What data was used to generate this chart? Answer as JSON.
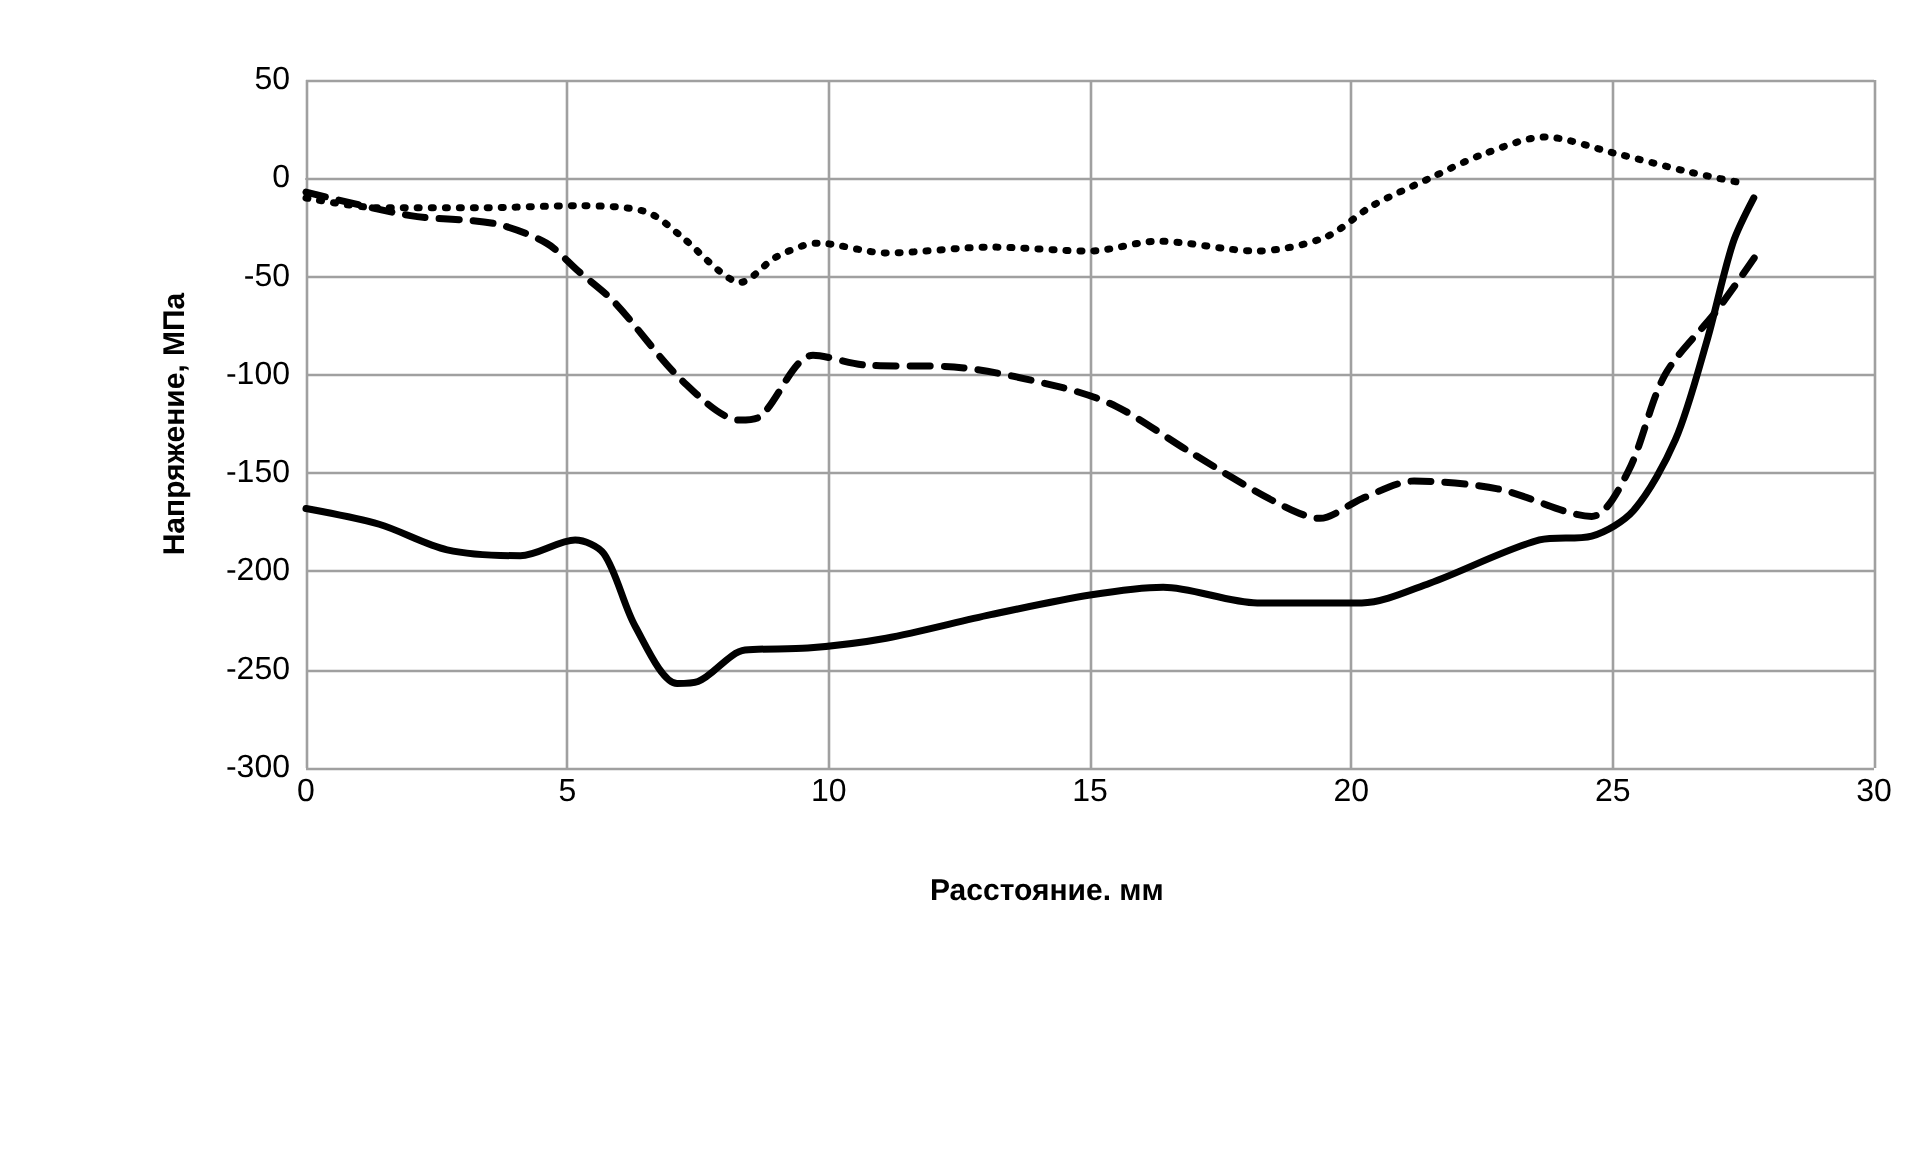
{
  "chart_data": {
    "type": "line",
    "xlabel": "Расстояние. мм",
    "ylabel": "Напряжение, МПа",
    "xlim": [
      0,
      30
    ],
    "xticks": [
      0,
      5,
      10,
      15,
      20,
      25,
      30
    ],
    "ylim": [
      -300,
      50
    ],
    "yticks": [
      -300,
      -250,
      -200,
      -150,
      -100,
      -50,
      0,
      50
    ],
    "grid": true,
    "marker": "none",
    "series": [
      {
        "color": "#000000",
        "line_style": "solid",
        "x": [
          0,
          1.4,
          2.7,
          4.1,
          5.15,
          5.7,
          6.3,
          7.1,
          7.5,
          8.4,
          9.6,
          11.1,
          13.1,
          15,
          16.4,
          18.2,
          20.2,
          21.5,
          23.6,
          24.6,
          25.4,
          26.2,
          26.8,
          27.3,
          27.7
        ],
        "values": [
          -168,
          -176,
          -189,
          -192,
          -184,
          -191,
          -228,
          -257,
          -256,
          -240,
          -239,
          -234,
          -222,
          -212,
          -208,
          -216,
          -216,
          -206,
          -184,
          -182,
          -169,
          -133,
          -83,
          -33,
          -10
        ]
      },
      {
        "color": "#000000",
        "line_style": "dashed",
        "x": [
          0,
          2,
          3.6,
          4.6,
          5.2,
          5.9,
          7.2,
          8.3,
          8.7,
          9.7,
          10.7,
          12.4,
          14.4,
          15.5,
          16.9,
          18.5,
          19.4,
          20.2,
          21.2,
          22.8,
          24.6,
          25.3,
          26,
          27,
          27.8
        ],
        "values": [
          -7,
          -19,
          -23,
          -33,
          -47,
          -63,
          -103,
          -123,
          -121,
          -90,
          -95,
          -96,
          -106,
          -116,
          -139,
          -164,
          -173,
          -163,
          -154,
          -158,
          -172,
          -149,
          -100,
          -67,
          -37
        ]
      },
      {
        "color": "#000000",
        "line_style": "dotted",
        "x": [
          0,
          1.4,
          3.3,
          5.2,
          6.5,
          7.2,
          7.9,
          8.3,
          9,
          9.8,
          11.1,
          13.1,
          15,
          16.3,
          18.2,
          19.5,
          20.4,
          21.5,
          22.5,
          23.7,
          25,
          26.5,
          27.4
        ],
        "values": [
          -10,
          -15,
          -15,
          -14,
          -17,
          -30,
          -47,
          -53,
          -40,
          -33,
          -38,
          -35,
          -37,
          -32,
          -37,
          -30,
          -14,
          0,
          12,
          21,
          13,
          3,
          -2
        ]
      }
    ]
  }
}
